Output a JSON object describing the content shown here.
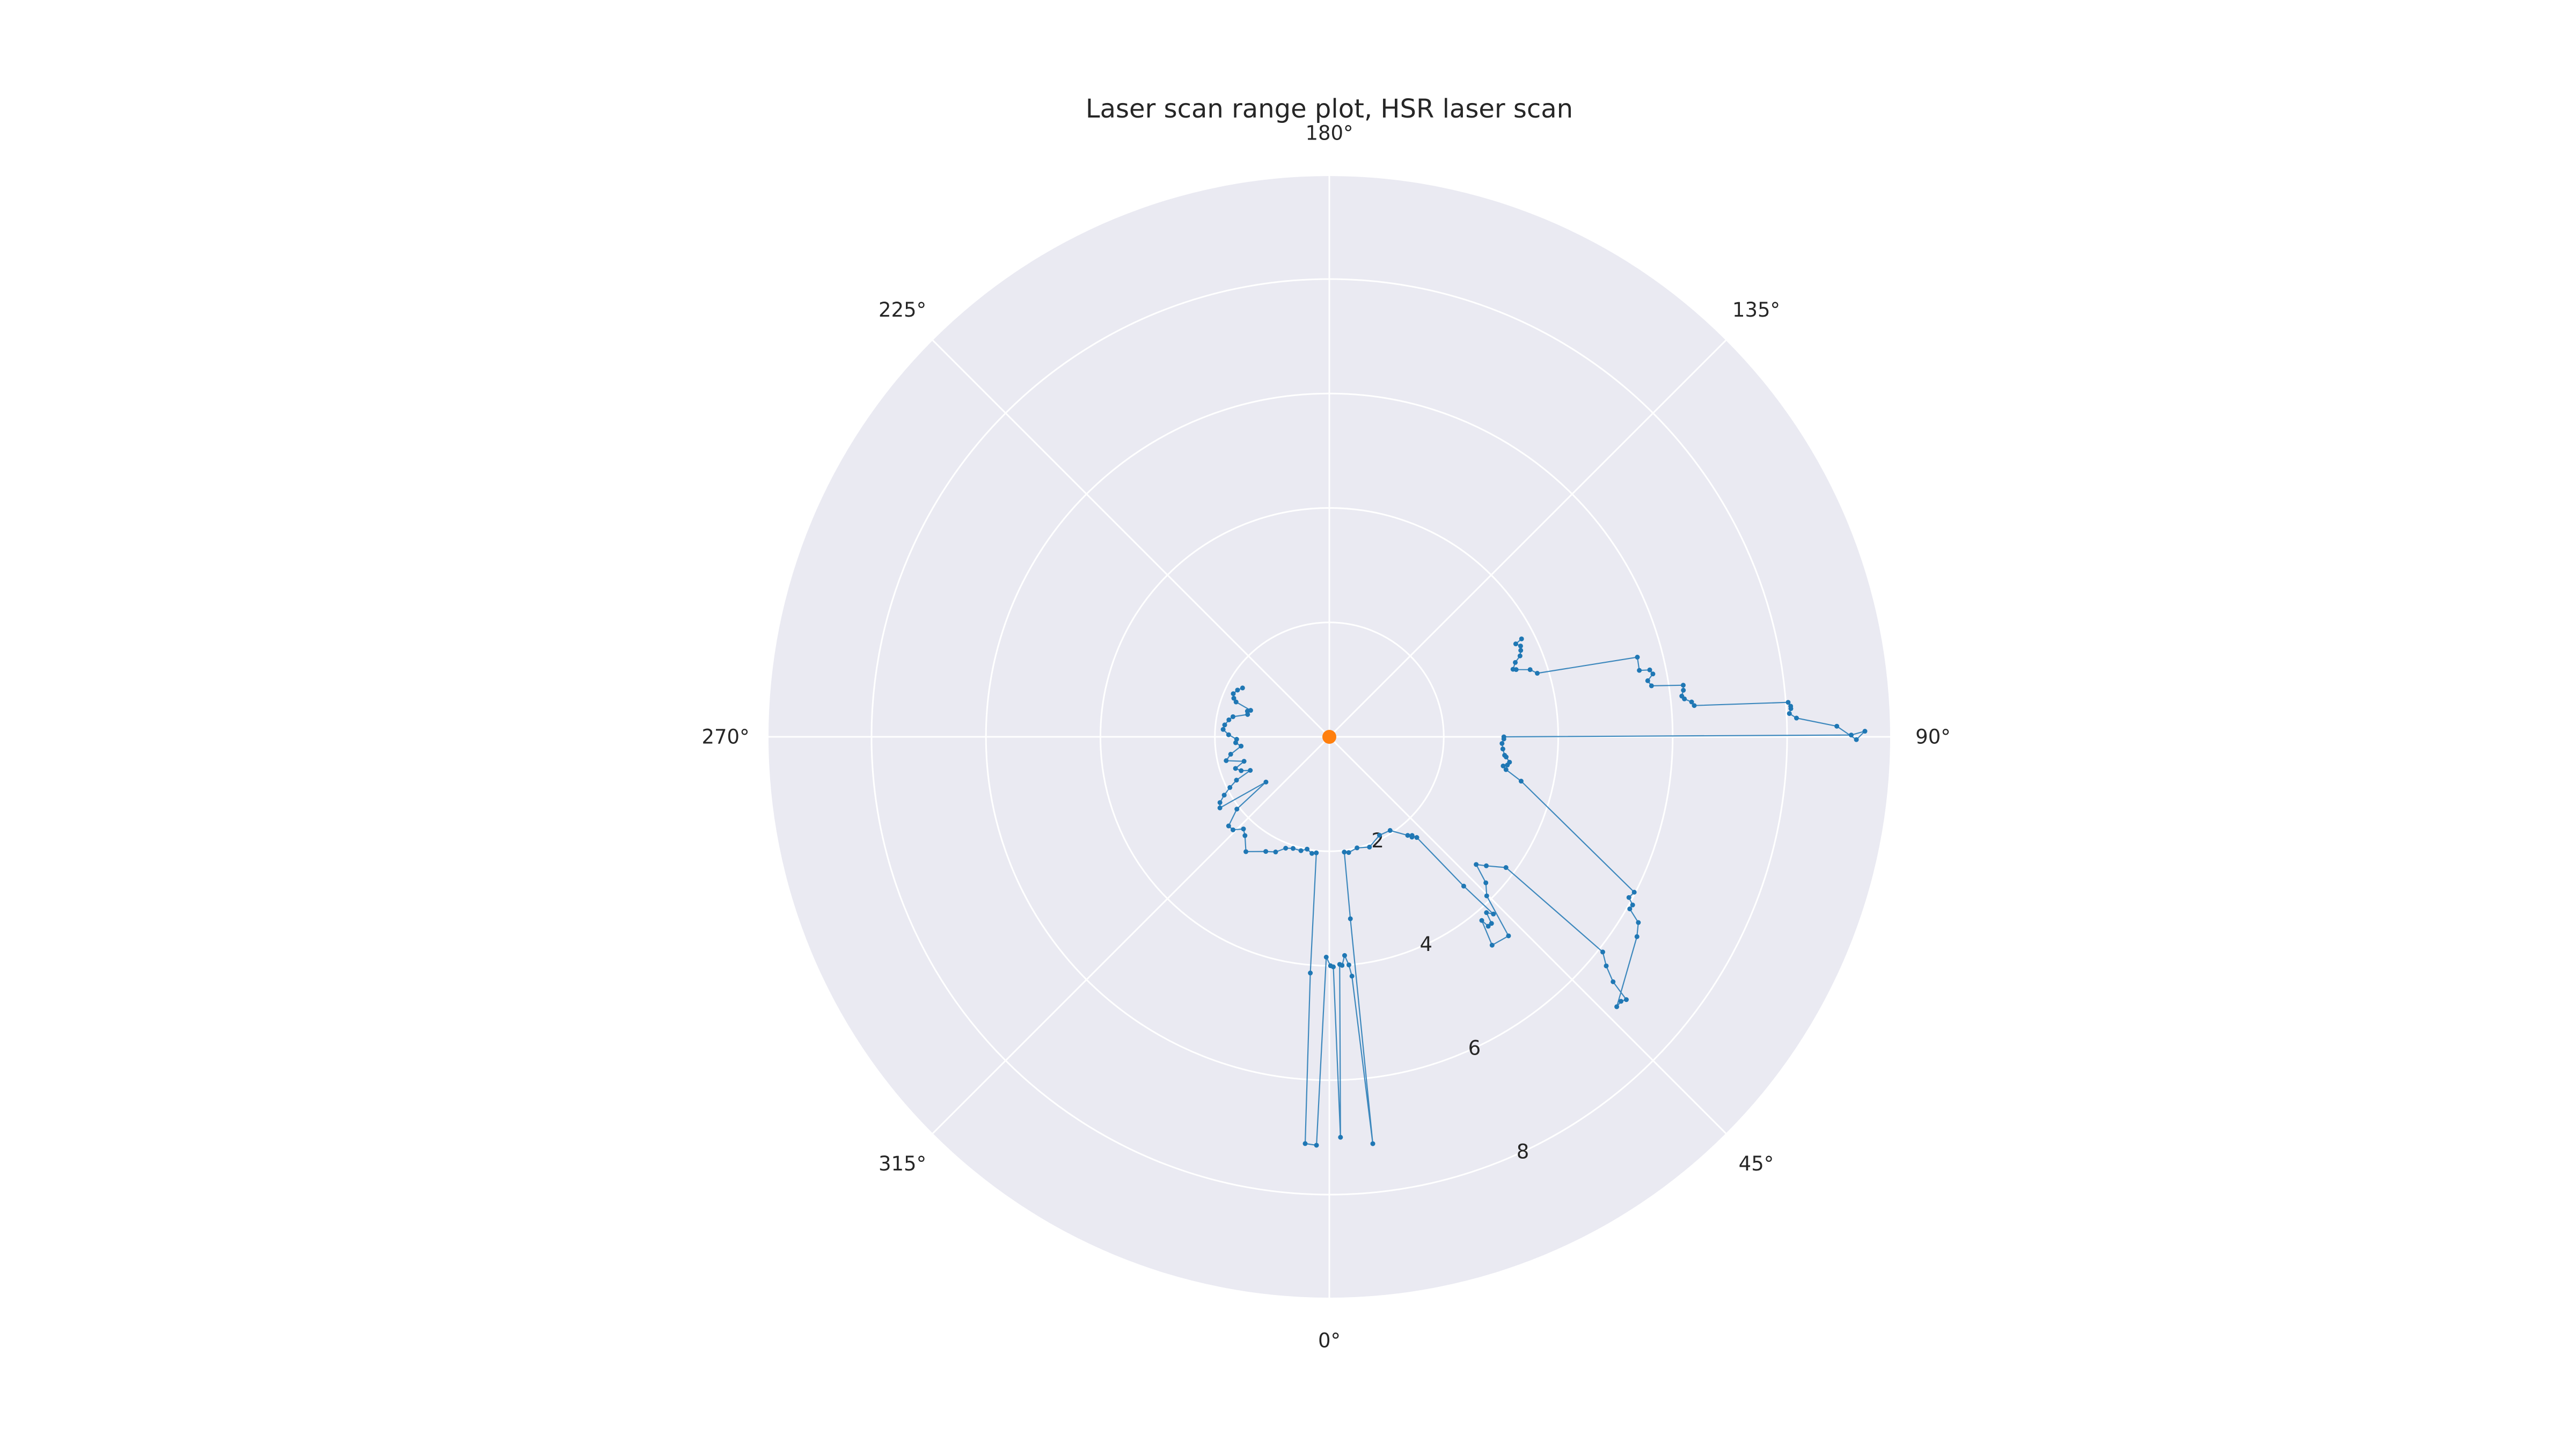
{
  "chart_data": {
    "type": "line",
    "projection": "polar",
    "title": "Laser scan range plot, HSR laser scan",
    "theta_zero_location": "bottom",
    "theta_direction": "counterclockwise",
    "theta_ticks": [
      0,
      45,
      90,
      135,
      180,
      225,
      270,
      315
    ],
    "theta_tick_labels": [
      "0°",
      "45°",
      "90°",
      "135°",
      "180°",
      "225°",
      "270°",
      "315°"
    ],
    "r_ticks": [
      2,
      4,
      6,
      8
    ],
    "r_tick_labels": [
      "2",
      "4",
      "6",
      "8"
    ],
    "r_tick_label_angle": 25,
    "rlim": [
      0,
      9.8
    ],
    "grid": true,
    "background_color": "#EAEAF2",
    "grid_color": "#FFFFFF",
    "series": [
      {
        "color": "#1F77B4",
        "points": [
          [
            -119.4,
            1.74
          ],
          [
            -117.0,
            1.8
          ],
          [
            -114.2,
            1.84
          ],
          [
            -112.0,
            1.8
          ],
          [
            -110.5,
            1.74
          ],
          [
            -108.6,
            1.45
          ],
          [
            -107.4,
            1.5
          ],
          [
            -105.3,
            1.48
          ],
          [
            -101.8,
            1.72
          ],
          [
            -99.6,
            1.78
          ],
          [
            -96.5,
            1.84
          ],
          [
            -94.0,
            1.86
          ],
          [
            -91.2,
            1.76
          ],
          [
            -88.5,
            1.62
          ],
          [
            -86.4,
            1.64
          ],
          [
            -84.0,
            1.55
          ],
          [
            -80.0,
            1.75
          ],
          [
            -77.0,
            1.85
          ],
          [
            -74.0,
            1.55
          ],
          [
            -71.4,
            1.73
          ],
          [
            -69.0,
            1.65
          ],
          [
            -67.0,
            1.5
          ],
          [
            -65.0,
            1.79
          ],
          [
            -63.0,
            1.95
          ],
          [
            -61.0,
            2.1
          ],
          [
            -59.0,
            2.23
          ],
          [
            -57.0,
            2.28
          ],
          [
            -54.5,
            1.36
          ],
          [
            -52.0,
            2.05
          ],
          [
            -48.5,
            2.35
          ],
          [
            -46.0,
            2.34
          ],
          [
            -43.0,
            2.2
          ],
          [
            -40.5,
            2.27
          ],
          [
            -36.0,
            2.48
          ],
          [
            -29.0,
            2.29
          ],
          [
            -25.0,
            2.22
          ],
          [
            -21.4,
            2.09
          ],
          [
            -18.0,
            2.05
          ],
          [
            -14.0,
            2.05
          ],
          [
            -11.2,
            2.0
          ],
          [
            -8.5,
            2.06
          ],
          [
            -6.4,
            2.04
          ],
          [
            -4.6,
            4.14
          ],
          [
            -3.4,
            7.12
          ],
          [
            -1.8,
            7.14
          ],
          [
            -0.8,
            3.85
          ],
          [
            0.3,
            4.0
          ],
          [
            1.0,
            4.02
          ],
          [
            1.6,
            7.0
          ],
          [
            2.6,
            3.98
          ],
          [
            3.2,
            4.0
          ],
          [
            4.0,
            3.83
          ],
          [
            4.9,
            4.0
          ],
          [
            5.4,
            4.2
          ],
          [
            6.1,
            7.15
          ],
          [
            6.6,
            3.2
          ],
          [
            7.4,
            2.03
          ],
          [
            9.5,
            2.05
          ],
          [
            14.0,
            2.0
          ],
          [
            20.0,
            2.05
          ],
          [
            27.0,
            1.93
          ],
          [
            33.0,
            1.95
          ],
          [
            38.5,
            2.2
          ],
          [
            39.5,
            2.27
          ],
          [
            40.0,
            2.25
          ],
          [
            41.0,
            2.33
          ],
          [
            42.0,
            3.51
          ],
          [
            42.8,
            4.22
          ],
          [
            41.8,
            4.12
          ],
          [
            41.0,
            4.32
          ],
          [
            40.0,
            4.32
          ],
          [
            39.7,
            4.17
          ],
          [
            38.0,
            4.62
          ],
          [
            42.0,
            4.68
          ],
          [
            44.7,
            3.91
          ],
          [
            47.0,
            3.74
          ],
          [
            49.0,
            3.4
          ],
          [
            50.6,
            3.55
          ],
          [
            53.5,
            3.84
          ],
          [
            51.8,
            6.08
          ],
          [
            50.4,
            6.28
          ],
          [
            49.2,
            6.55
          ],
          [
            48.5,
            6.93
          ],
          [
            47.8,
            6.88
          ],
          [
            46.8,
            6.89
          ],
          [
            57.0,
            6.41
          ],
          [
            59.0,
            6.3
          ],
          [
            60.2,
            6.05
          ],
          [
            61.0,
            6.06
          ],
          [
            61.8,
            5.94
          ],
          [
            63.0,
            5.98
          ],
          [
            77.0,
            3.44
          ],
          [
            79.5,
            3.14
          ],
          [
            80.5,
            3.08
          ],
          [
            81.0,
            3.15
          ],
          [
            82.0,
            3.18
          ],
          [
            83.5,
            3.11
          ],
          [
            84.0,
            3.08
          ],
          [
            86.0,
            3.04
          ],
          [
            87.8,
            3.02
          ],
          [
            89.3,
            3.05
          ],
          [
            90.0,
            3.05
          ],
          [
            90.2,
            9.12
          ],
          [
            90.6,
            9.36
          ],
          [
            89.7,
            9.21
          ],
          [
            91.2,
            8.87
          ],
          [
            92.3,
            8.17
          ],
          [
            92.9,
            8.05
          ],
          [
            93.5,
            8.08
          ],
          [
            93.8,
            8.08
          ],
          [
            94.3,
            8.04
          ],
          [
            94.9,
            6.4
          ],
          [
            95.5,
            6.36
          ],
          [
            96.1,
            6.24
          ],
          [
            96.6,
            6.2
          ],
          [
            97.5,
            6.24
          ],
          [
            98.3,
            6.25
          ],
          [
            99.0,
            5.7
          ],
          [
            100.0,
            5.65
          ],
          [
            101.0,
            5.76
          ],
          [
            101.8,
            5.72
          ],
          [
            102.1,
            5.54
          ],
          [
            104.5,
            5.56
          ],
          [
            107.0,
            3.8
          ],
          [
            108.5,
            3.7
          ],
          [
            109.8,
            3.47
          ],
          [
            110.2,
            3.42
          ],
          [
            111.8,
            3.5
          ],
          [
            113.0,
            3.62
          ],
          [
            114.3,
            3.67
          ],
          [
            115.4,
            3.7
          ],
          [
            116.5,
            3.64
          ],
          [
            117.0,
            3.77
          ]
        ]
      },
      {
        "type": "scatter",
        "color": "#FF7F0E",
        "points": [
          [
            0,
            0
          ]
        ]
      }
    ]
  }
}
